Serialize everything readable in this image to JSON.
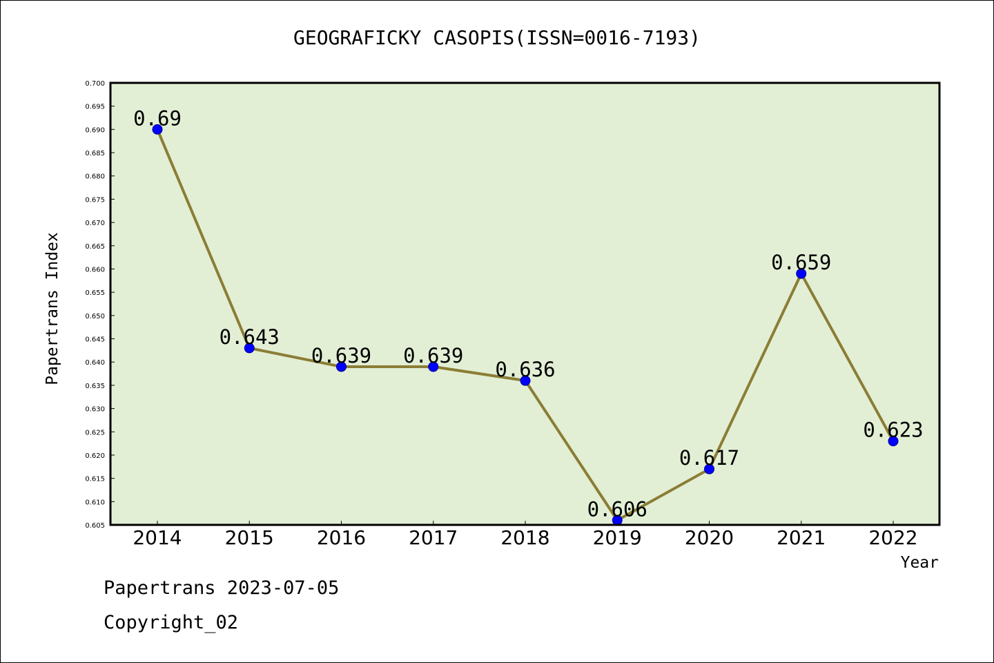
{
  "chart_data": {
    "type": "line",
    "title": "GEOGRAFICKY CASOPIS(ISSN=0016-7193)",
    "xlabel": "Year",
    "ylabel": "Papertrans Index",
    "categories": [
      "2014",
      "2015",
      "2016",
      "2017",
      "2018",
      "2019",
      "2020",
      "2021",
      "2022"
    ],
    "values": [
      0.69,
      0.643,
      0.639,
      0.639,
      0.636,
      0.606,
      0.617,
      0.659,
      0.623
    ],
    "data_labels": [
      "0.69",
      "0.643",
      "0.639",
      "0.639",
      "0.636",
      "0.606",
      "0.617",
      "0.659",
      "0.623"
    ],
    "ylim": [
      0.605,
      0.7
    ],
    "yticks": [
      "0.605",
      "0.610",
      "0.615",
      "0.620",
      "0.625",
      "0.630",
      "0.635",
      "0.640",
      "0.645",
      "0.650",
      "0.655",
      "0.660",
      "0.665",
      "0.670",
      "0.675",
      "0.680",
      "0.685",
      "0.690",
      "0.695",
      "0.700"
    ],
    "grid": false,
    "colors": {
      "plot_background": "#e2efd5",
      "line": "#8b7d35",
      "marker": "#0000ff"
    }
  },
  "footer": {
    "line1": "Papertrans 2023-07-05",
    "line2": "Copyright_02"
  }
}
